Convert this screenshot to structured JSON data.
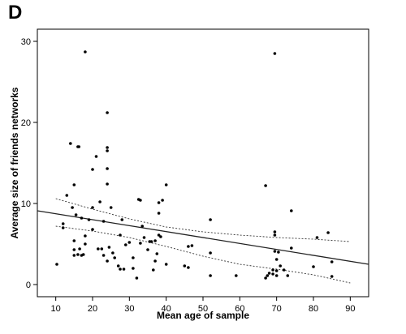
{
  "panel_label": "D",
  "chart_data": {
    "type": "scatter",
    "xlabel": "Mean age of sample",
    "ylabel": "Average size of friends networks",
    "xlim": [
      5,
      95
    ],
    "ylim": [
      -1.5,
      31.5
    ],
    "x_ticks": [
      10,
      20,
      30,
      40,
      50,
      60,
      70,
      80,
      90
    ],
    "y_ticks": [
      0,
      10,
      20,
      30
    ],
    "grid": false,
    "frame": "box",
    "points": [
      [
        10.3,
        2.5
      ],
      [
        12,
        7
      ],
      [
        12,
        7.5
      ],
      [
        13,
        11
      ],
      [
        14,
        17.4
      ],
      [
        14.5,
        9.5
      ],
      [
        15,
        12.3
      ],
      [
        15,
        5.4
      ],
      [
        15,
        4.3
      ],
      [
        15,
        3.6
      ],
      [
        15.5,
        8.6
      ],
      [
        16,
        17
      ],
      [
        16.3,
        17
      ],
      [
        16,
        3.7
      ],
      [
        16.5,
        4.4
      ],
      [
        17,
        8.2
      ],
      [
        17,
        3.6
      ],
      [
        17.5,
        3.7
      ],
      [
        18,
        28.7
      ],
      [
        18,
        6
      ],
      [
        18,
        5
      ],
      [
        19,
        8
      ],
      [
        20,
        6.8
      ],
      [
        20,
        9.5
      ],
      [
        20,
        14.2
      ],
      [
        21,
        15.8
      ],
      [
        21.5,
        4.4
      ],
      [
        22,
        10.2
      ],
      [
        22.5,
        4.4
      ],
      [
        23,
        7.8
      ],
      [
        23,
        3.6
      ],
      [
        24,
        21.2
      ],
      [
        24,
        16.9
      ],
      [
        24,
        16.5
      ],
      [
        24,
        14.3
      ],
      [
        24,
        12.4
      ],
      [
        24,
        2.9
      ],
      [
        24.5,
        4.6
      ],
      [
        25,
        9.5
      ],
      [
        25.5,
        3.9
      ],
      [
        26,
        3.3
      ],
      [
        27,
        2.3
      ],
      [
        27.5,
        6.1
      ],
      [
        27.5,
        1.9
      ],
      [
        28,
        8
      ],
      [
        28.5,
        1.9
      ],
      [
        29,
        4.9
      ],
      [
        30,
        5.2
      ],
      [
        31,
        3.3
      ],
      [
        31,
        2
      ],
      [
        32,
        0.8
      ],
      [
        32.5,
        10.5
      ],
      [
        33,
        10.4
      ],
      [
        33,
        5.1
      ],
      [
        33.5,
        7.2
      ],
      [
        34,
        5.8
      ],
      [
        35,
        4.3
      ],
      [
        35.5,
        5.3
      ],
      [
        36,
        5.3
      ],
      [
        36.5,
        1.8
      ],
      [
        37,
        5.4
      ],
      [
        37,
        2.9
      ],
      [
        37.5,
        3.8
      ],
      [
        38,
        8.8
      ],
      [
        38,
        10.1
      ],
      [
        38,
        6.1
      ],
      [
        38.5,
        5.9
      ],
      [
        39,
        10.4
      ],
      [
        40,
        12.3
      ],
      [
        40,
        2.5
      ],
      [
        45,
        2.3
      ],
      [
        46,
        4.7
      ],
      [
        46,
        2.1
      ],
      [
        47,
        4.8
      ],
      [
        52,
        8
      ],
      [
        52,
        3.9
      ],
      [
        52,
        1.1
      ],
      [
        59,
        1.1
      ],
      [
        67,
        12.2
      ],
      [
        67,
        0.8
      ],
      [
        67.5,
        1.1
      ],
      [
        68,
        1.4
      ],
      [
        69,
        1.8
      ],
      [
        69,
        1.3
      ],
      [
        69.5,
        28.5
      ],
      [
        69.5,
        6.5
      ],
      [
        69.5,
        6.1
      ],
      [
        69.5,
        4.1
      ],
      [
        70,
        3.1
      ],
      [
        70,
        1.7
      ],
      [
        70,
        1.1
      ],
      [
        70.5,
        4
      ],
      [
        71,
        2.3
      ],
      [
        72,
        1.8
      ],
      [
        73,
        1.1
      ],
      [
        74,
        9.1
      ],
      [
        74,
        4.5
      ],
      [
        80,
        2.2
      ],
      [
        81,
        5.8
      ],
      [
        84,
        6.4
      ],
      [
        85,
        2.8
      ],
      [
        85,
        1
      ]
    ],
    "fit_line": {
      "x": [
        5,
        95
      ],
      "y": [
        9.1,
        2.5
      ]
    },
    "ci_upper": {
      "x": [
        10,
        20,
        30,
        40,
        50,
        60,
        70,
        80,
        90
      ],
      "y": [
        10.6,
        9.3,
        8.1,
        7.1,
        6.5,
        6.1,
        5.8,
        5.6,
        5.3
      ]
    },
    "ci_lower": {
      "x": [
        10,
        20,
        30,
        40,
        50,
        60,
        70,
        80,
        90
      ],
      "y": [
        7.2,
        6.6,
        5.8,
        4.7,
        3.5,
        2.5,
        1.9,
        1.2,
        0.2
      ]
    },
    "colors": {
      "point": "#000000",
      "fit": "#222222",
      "ci": "#333333",
      "axis": "#000000"
    }
  }
}
